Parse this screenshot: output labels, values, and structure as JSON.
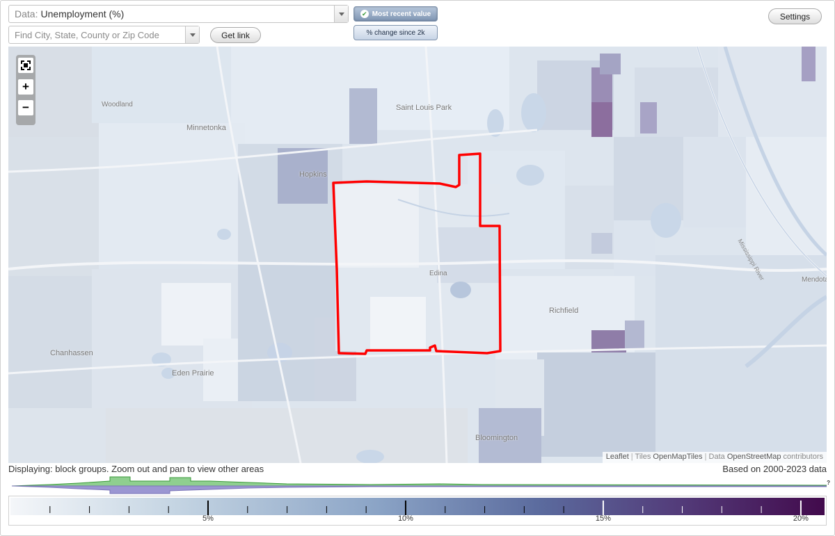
{
  "controls": {
    "data_prefix": "Data:",
    "data_value": "Unemployment (%)",
    "search_placeholder": "Find City, State, County or Zip Code",
    "get_link_label": "Get link",
    "toggle_recent_label": "Most recent value",
    "toggle_change_label": "% change since 2k",
    "settings_label": "Settings"
  },
  "map": {
    "places": [
      "Saint Louis Park",
      "Woodland",
      "Minnetonka",
      "Hopkins",
      "Edina",
      "Richfield",
      "Chanhassen",
      "Eden Prairie",
      "Bloomington",
      "Mendota"
    ],
    "highway_label": "Mississippi River",
    "zoom_controls": {
      "fullscreen": "fullscreen-icon",
      "zoom_in": "+",
      "zoom_out": "−"
    },
    "highlight_color": "#ff0000",
    "attribution": {
      "leaflet": "Leaflet",
      "sep": " | ",
      "tiles_prefix": "Tiles ",
      "tiles": "OpenMapTiles",
      "data_prefix": "Data ",
      "data": "OpenStreetMap",
      "suffix": " contributors"
    }
  },
  "footer": {
    "displaying": "Displaying: block groups. Zoom out and pan to view other areas",
    "based_on": "Based on 2000-2023 data",
    "histogram_marker": "?"
  },
  "legend": {
    "labels": [
      "5%",
      "10%",
      "15%",
      "20%"
    ],
    "values": [
      5,
      10,
      15,
      20
    ],
    "min": 0,
    "max": 20.6,
    "minor_step": 1,
    "colors": [
      "#f4f6f9",
      "#c5d5e3",
      "#8ba4c6",
      "#5b6b9e",
      "#533c7a",
      "#420a4c"
    ]
  }
}
